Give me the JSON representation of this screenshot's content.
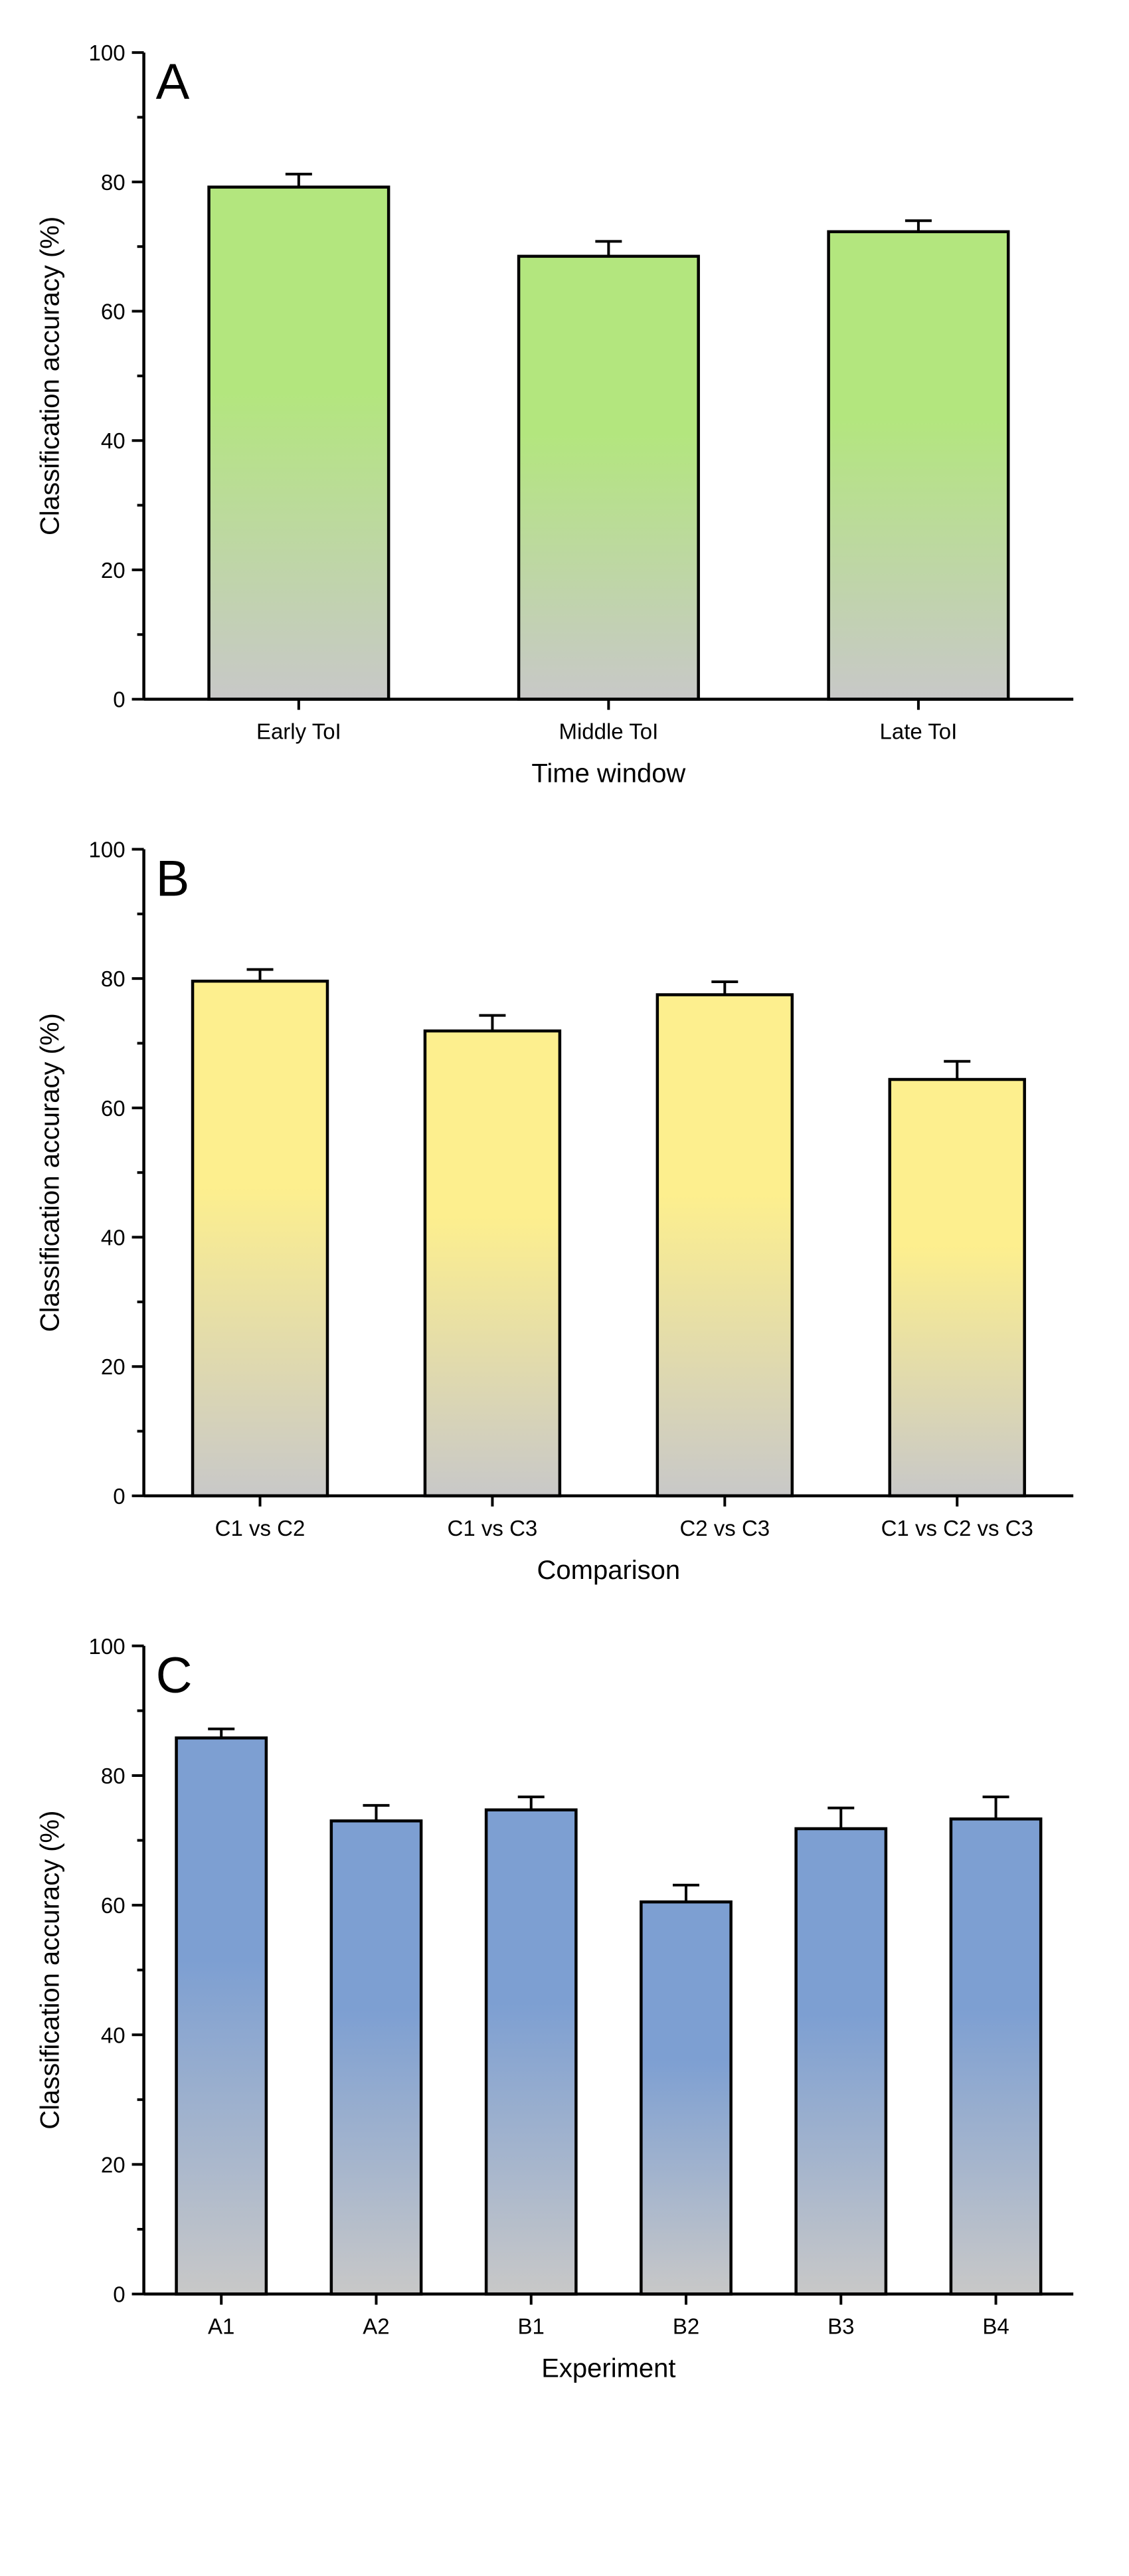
{
  "chart_data": [
    {
      "type": "bar",
      "panel": "A",
      "title": "",
      "xlabel": "Time window",
      "ylabel": "Classification accuracy (%)",
      "ylim": [
        0,
        100
      ],
      "yticks": [
        "0",
        "20",
        "40",
        "60",
        "80",
        "100"
      ],
      "categories": [
        "Early ToI",
        "Middle ToI",
        "Late ToI"
      ],
      "values": [
        79.2,
        68.5,
        72.3
      ],
      "errors": [
        2.0,
        2.3,
        1.7
      ],
      "gradient_top": "#b3e67e",
      "gradient_bottom": "#c8c8c8"
    },
    {
      "type": "bar",
      "panel": "B",
      "title": "",
      "xlabel": "Comparison",
      "ylabel": "Classification accuracy (%)",
      "ylim": [
        0,
        100
      ],
      "yticks": [
        "0",
        "20",
        "40",
        "60",
        "80",
        "100"
      ],
      "categories": [
        "C1 vs C2",
        "C1 vs C3",
        "C2 vs C3",
        "C1 vs C2 vs C3"
      ],
      "values": [
        79.6,
        71.9,
        77.5,
        64.4
      ],
      "errors": [
        1.8,
        2.4,
        2.0,
        2.8
      ],
      "gradient_top": "#fdef8e",
      "gradient_bottom": "#c8c8c8"
    },
    {
      "type": "bar",
      "panel": "C",
      "title": "",
      "xlabel": "Experiment",
      "ylabel": "Classification accuracy (%)",
      "ylim": [
        0,
        100
      ],
      "yticks": [
        "0",
        "20",
        "40",
        "60",
        "80",
        "100"
      ],
      "categories": [
        "A1",
        "A2",
        "B1",
        "B2",
        "B3",
        "B4"
      ],
      "values": [
        85.8,
        73.0,
        74.7,
        60.5,
        71.8,
        73.3
      ],
      "errors": [
        1.4,
        2.4,
        2.0,
        2.6,
        3.2,
        3.4
      ],
      "gradient_top": "#7d9fd2",
      "gradient_bottom": "#c8c8c8"
    }
  ]
}
